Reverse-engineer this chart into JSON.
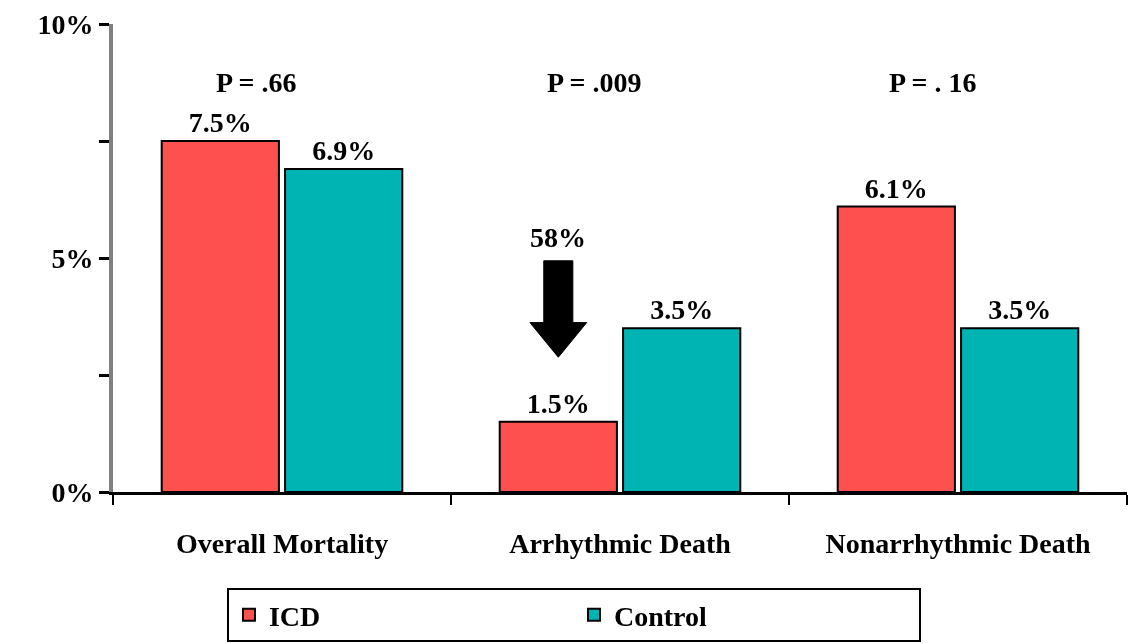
{
  "chart_data": {
    "type": "bar",
    "categories": [
      "Overall Mortality",
      "Arrhythmic Death",
      "Nonarrhythmic Death"
    ],
    "series": [
      {
        "name": "ICD",
        "color": "#ff5050",
        "values": [
          7.5,
          1.5,
          6.1
        ],
        "value_labels": [
          "7.5%",
          "1.5%",
          "6.1%"
        ]
      },
      {
        "name": "Control",
        "color": "#00b4b4",
        "values": [
          6.9,
          3.5,
          3.5
        ],
        "value_labels": [
          "6.9%",
          "3.5%",
          "3.5%"
        ]
      }
    ],
    "ylim": [
      0,
      10
    ],
    "yticks": [
      {
        "value": 0,
        "label": "0%"
      },
      {
        "value": 2.5,
        "label": null
      },
      {
        "value": 5,
        "label": "5%"
      },
      {
        "value": 7.5,
        "label": null
      },
      {
        "value": 10,
        "label": "10%"
      }
    ],
    "grid": false,
    "legend": "bottom",
    "annotations": [
      "P = .66",
      "P = .009",
      "P = . 16",
      "58%"
    ]
  }
}
